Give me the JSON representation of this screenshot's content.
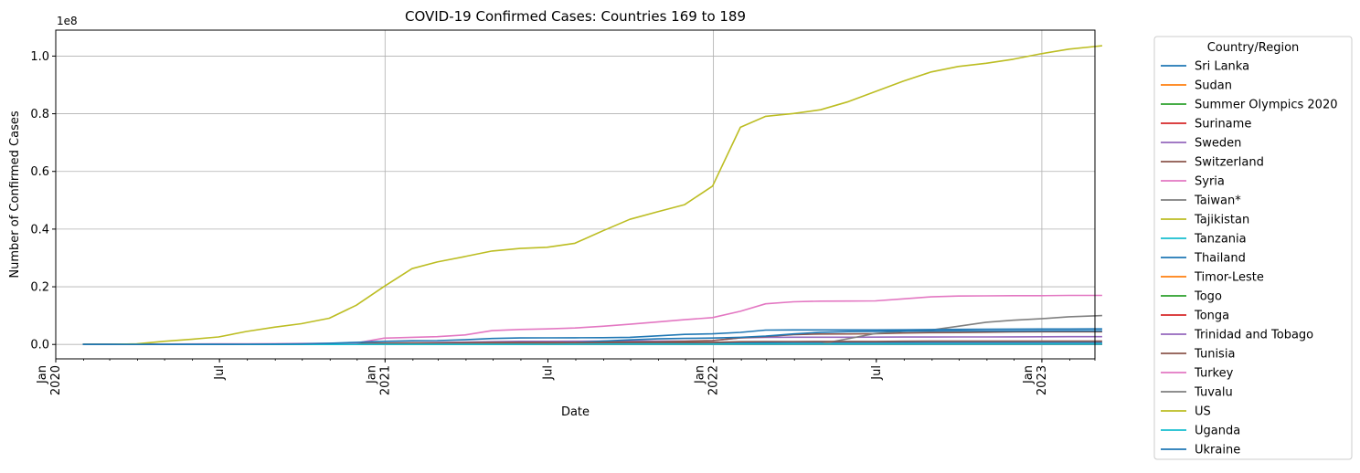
{
  "chart_data": {
    "type": "line",
    "title": "COVID-19 Confirmed Cases: Countries 169 to 189",
    "xlabel": "Date",
    "ylabel": "Number of Confirmed Cases",
    "y_offset_label": "1e8",
    "ylim": [
      -5000000,
      109000000
    ],
    "xlim": [
      "2020-01-01",
      "2023-03-01"
    ],
    "grid": true,
    "legend_title": "Country/Region",
    "legend_placement": "outside-right",
    "x_ticks": [
      {
        "date": "2020-01-01",
        "label": [
          "Jan",
          "2020"
        ]
      },
      {
        "date": "2020-07-01",
        "label": [
          "Jul"
        ]
      },
      {
        "date": "2021-01-01",
        "label": [
          "Jan",
          "2021"
        ]
      },
      {
        "date": "2021-07-01",
        "label": [
          "Jul"
        ]
      },
      {
        "date": "2022-01-01",
        "label": [
          "Jan",
          "2022"
        ]
      },
      {
        "date": "2022-07-01",
        "label": [
          "Jul"
        ]
      },
      {
        "date": "2023-01-01",
        "label": [
          "Jan",
          "2023"
        ]
      }
    ],
    "y_ticks": [
      {
        "value": 0,
        "label": "0.0"
      },
      {
        "value": 20000000,
        "label": "0.2"
      },
      {
        "value": 40000000,
        "label": "0.4"
      },
      {
        "value": 60000000,
        "label": "0.6"
      },
      {
        "value": 80000000,
        "label": "0.8"
      },
      {
        "value": 100000000,
        "label": "1.0"
      }
    ],
    "dates": [
      "2020-01-31",
      "2020-02-29",
      "2020-03-31",
      "2020-04-30",
      "2020-05-31",
      "2020-06-30",
      "2020-07-31",
      "2020-08-31",
      "2020-09-30",
      "2020-10-31",
      "2020-11-30",
      "2020-12-31",
      "2021-01-31",
      "2021-02-28",
      "2021-03-31",
      "2021-04-30",
      "2021-05-31",
      "2021-06-30",
      "2021-07-31",
      "2021-08-31",
      "2021-09-30",
      "2021-10-31",
      "2021-11-30",
      "2021-12-31",
      "2022-01-31",
      "2022-02-28",
      "2022-03-31",
      "2022-04-30",
      "2022-05-31",
      "2022-06-30",
      "2022-07-31",
      "2022-08-31",
      "2022-09-30",
      "2022-10-31",
      "2022-11-30",
      "2022-12-31",
      "2023-01-31",
      "2023-02-28",
      "2023-03-09"
    ],
    "series": [
      {
        "name": "Sri Lanka",
        "color": "#1f77b4",
        "values": [
          0,
          0,
          0,
          0,
          0,
          0,
          0,
          0,
          0,
          10000,
          20000,
          40000,
          60000,
          80000,
          90000,
          100000,
          170000,
          260000,
          310000,
          420000,
          520000,
          540000,
          570000,
          590000,
          620000,
          650000,
          660000,
          663000,
          663000,
          663000,
          664000,
          670000,
          671000,
          671000,
          671000,
          672000,
          672000,
          672000,
          672000
        ]
      },
      {
        "name": "Sudan",
        "color": "#ff7f0e",
        "values": [
          0,
          0,
          0,
          0,
          5000,
          9000,
          11000,
          13000,
          13000,
          14000,
          17000,
          23000,
          28000,
          31000,
          32000,
          34000,
          36000,
          37000,
          37000,
          38000,
          40000,
          42000,
          44000,
          49000,
          58000,
          61000,
          62000,
          62000,
          62000,
          62000,
          63000,
          63000,
          63000,
          63000,
          63000,
          63000,
          63000,
          63000,
          63000
        ]
      },
      {
        "name": "Summer Olympics 2020",
        "color": "#2ca02c",
        "values": [
          0,
          0,
          0,
          0,
          0,
          0,
          0,
          0,
          0,
          0,
          0,
          0,
          0,
          0,
          0,
          0,
          0,
          0,
          0,
          865,
          865,
          865,
          865,
          865,
          865,
          865,
          865,
          865,
          865,
          865,
          865,
          865,
          865,
          865,
          865,
          865,
          865,
          865,
          865
        ]
      },
      {
        "name": "Suriname",
        "color": "#d62728",
        "values": [
          0,
          0,
          0,
          0,
          0,
          1000,
          2000,
          4000,
          5000,
          5000,
          5000,
          6000,
          8000,
          9000,
          9000,
          10000,
          17000,
          24000,
          27000,
          30000,
          40000,
          49000,
          51000,
          52000,
          70000,
          78000,
          79000,
          79000,
          80000,
          80000,
          81000,
          81000,
          81000,
          82000,
          82000,
          82000,
          82000,
          82000,
          82000
        ]
      },
      {
        "name": "Sweden",
        "color": "#9467bd",
        "values": [
          0,
          10,
          5000,
          20000,
          37000,
          68000,
          81000,
          84000,
          94000,
          124000,
          243000,
          437000,
          580000,
          670000,
          780000,
          960000,
          1070000,
          1090000,
          1100000,
          1130000,
          1150000,
          1170000,
          1190000,
          1290000,
          2280000,
          2460000,
          2490000,
          2500000,
          2520000,
          2530000,
          2560000,
          2570000,
          2590000,
          2610000,
          2640000,
          2660000,
          2680000,
          2700000,
          2700000
        ]
      },
      {
        "name": "Switzerland",
        "color": "#8c564b",
        "values": [
          0,
          6,
          16000,
          30000,
          31000,
          32000,
          35000,
          42000,
          53000,
          135000,
          320000,
          450000,
          520000,
          550000,
          600000,
          660000,
          690000,
          700000,
          710000,
          780000,
          840000,
          880000,
          1070000,
          1320000,
          2330000,
          2740000,
          3410000,
          3610000,
          3640000,
          3720000,
          3970000,
          4080000,
          4130000,
          4260000,
          4340000,
          4400000,
          4400000,
          4400000,
          4400000
        ]
      },
      {
        "name": "Syria",
        "color": "#e377c2",
        "values": [
          0,
          0,
          10,
          40,
          120,
          300,
          700,
          2400,
          4100,
          5500,
          8000,
          11500,
          13500,
          15600,
          18700,
          22300,
          24300,
          25400,
          26000,
          27400,
          33800,
          41700,
          46700,
          49900,
          54300,
          55400,
          55800,
          55900,
          55900,
          56000,
          56100,
          56600,
          57100,
          57300,
          57400,
          57400,
          57400,
          57400,
          57400
        ]
      },
      {
        "name": "Taiwan*",
        "color": "#7f7f7f",
        "values": [
          10,
          40,
          320,
          430,
          440,
          450,
          470,
          490,
          510,
          550,
          670,
          800,
          900,
          960,
          1000,
          1100,
          11500,
          14900,
          15800,
          16000,
          16200,
          16400,
          16600,
          17000,
          18500,
          20000,
          25000,
          150000,
          2000000,
          3800000,
          4500000,
          5000000,
          6300000,
          7700000,
          8400000,
          8900000,
          9600000,
          9900000,
          10000000
        ]
      },
      {
        "name": "Tajikistan",
        "color": "#bcbd22",
        "values": [
          0,
          0,
          0,
          0,
          4000,
          6000,
          7200,
          8300,
          9500,
          10800,
          12200,
          13300,
          13300,
          13300,
          13300,
          13300,
          13300,
          13300,
          14500,
          16500,
          17000,
          17200,
          17300,
          17400,
          17500,
          17700,
          17700,
          17700,
          17800,
          17800,
          17800,
          17800,
          17800,
          17800,
          17800,
          17800,
          17800,
          17800,
          17800
        ]
      },
      {
        "name": "Tanzania",
        "color": "#17becf",
        "values": [
          0,
          0,
          19,
          480,
          510,
          510,
          510,
          510,
          510,
          510,
          510,
          510,
          510,
          510,
          510,
          510,
          510,
          510,
          1400,
          25000,
          26000,
          26000,
          26000,
          30000,
          33000,
          33000,
          33800,
          33900,
          34100,
          35400,
          37500,
          38800,
          39500,
          40000,
          40200,
          40300,
          42500,
          42900,
          43000
        ]
      },
      {
        "name": "Thailand",
        "color": "#1f77b4",
        "values": [
          20,
          40,
          1600,
          3000,
          3100,
          3200,
          3300,
          3400,
          3600,
          3800,
          3900,
          6900,
          19000,
          26000,
          29000,
          64000,
          160000,
          260000,
          600000,
          1190000,
          1580000,
          1920000,
          2090000,
          2230000,
          2460000,
          2890000,
          3640000,
          4220000,
          4440000,
          4520000,
          4590000,
          4640000,
          4680000,
          4690000,
          4700000,
          4720000,
          4730000,
          4730000,
          4730000
        ]
      },
      {
        "name": "Timor-Leste",
        "color": "#ff7f0e",
        "values": [
          0,
          0,
          1,
          24,
          24,
          24,
          25,
          27,
          28,
          30,
          30,
          44,
          80,
          120,
          770,
          2400,
          5500,
          8100,
          14200,
          18700,
          19500,
          19700,
          19800,
          19800,
          22600,
          22900,
          22900,
          22900,
          22900,
          23000,
          23100,
          23200,
          23300,
          23300,
          23400,
          23400,
          23400,
          23400,
          23400
        ]
      },
      {
        "name": "Togo",
        "color": "#2ca02c",
        "values": [
          0,
          1,
          34,
          116,
          441,
          661,
          950,
          1400,
          1800,
          2200,
          2800,
          3600,
          5000,
          6800,
          8500,
          12800,
          13400,
          13700,
          15700,
          23000,
          26000,
          26000,
          26500,
          29000,
          36500,
          36900,
          36900,
          37000,
          37100,
          38600,
          39000,
          39300,
          39300,
          39300,
          39300,
          39300,
          39400,
          39400,
          39400
        ]
      },
      {
        "name": "Tonga",
        "color": "#d62728",
        "values": [
          0,
          0,
          0,
          0,
          0,
          0,
          0,
          0,
          0,
          0,
          1,
          1,
          1,
          1,
          1,
          1,
          1,
          1,
          1,
          1,
          1,
          1,
          1,
          1,
          1,
          7,
          200,
          8700,
          11500,
          12000,
          15000,
          16000,
          16200,
          16300,
          16400,
          16600,
          16700,
          16800,
          16800
        ]
      },
      {
        "name": "Trinidad and Tobago",
        "color": "#9467bd",
        "values": [
          0,
          0,
          85,
          116,
          116,
          130,
          143,
          1100,
          4800,
          5800,
          6700,
          7000,
          7500,
          7800,
          8300,
          11500,
          24800,
          31000,
          37000,
          45000,
          53000,
          63000,
          76000,
          89000,
          113000,
          132000,
          143000,
          151000,
          160000,
          165000,
          175000,
          178000,
          180000,
          182000,
          185000,
          187000,
          189000,
          190000,
          190000
        ]
      },
      {
        "name": "Tunisia",
        "color": "#8c564b",
        "values": [
          0,
          0,
          400,
          1000,
          1100,
          1200,
          1500,
          3000,
          17500,
          56000,
          96000,
          137000,
          210000,
          230000,
          250000,
          310000,
          350000,
          380000,
          600000,
          680000,
          700000,
          710000,
          715000,
          720000,
          960000,
          1010000,
          1030000,
          1040000,
          1045000,
          1060000,
          1120000,
          1140000,
          1145000,
          1146000,
          1147000,
          1148000,
          1150000,
          1150000,
          1150000
        ]
      },
      {
        "name": "Turkey",
        "color": "#e377c2",
        "values": [
          0,
          0,
          13500,
          120000,
          164000,
          200000,
          230000,
          270000,
          320000,
          370000,
          470000,
          2200000,
          2460000,
          2700000,
          3300000,
          4800000,
          5200000,
          5400000,
          5700000,
          6300000,
          7000000,
          7800000,
          8600000,
          9300000,
          11500000,
          14100000,
          14800000,
          15000000,
          15050000,
          15100000,
          15800000,
          16500000,
          16800000,
          16850000,
          16900000,
          16900000,
          17000000,
          17000000,
          17000000
        ]
      },
      {
        "name": "Tuvalu",
        "color": "#7f7f7f",
        "values": [
          0,
          0,
          0,
          0,
          0,
          0,
          0,
          0,
          0,
          0,
          0,
          0,
          0,
          0,
          0,
          0,
          0,
          0,
          0,
          0,
          0,
          0,
          0,
          0,
          0,
          0,
          0,
          0,
          0,
          0,
          0,
          0,
          0,
          0,
          500,
          2700,
          2800,
          2800,
          2800
        ]
      },
      {
        "name": "US",
        "color": "#bcbd22",
        "values": [
          7,
          24,
          190000,
          1070000,
          1790000,
          2590000,
          4500000,
          6000000,
          7200000,
          9100000,
          13600000,
          20100000,
          26300000,
          28600000,
          30500000,
          32400000,
          33300000,
          33700000,
          35100000,
          39400000,
          43400000,
          46000000,
          48500000,
          54900000,
          75300000,
          79100000,
          80100000,
          81400000,
          84200000,
          87700000,
          91300000,
          94500000,
          96400000,
          97500000,
          98900000,
          100800000,
          102400000,
          103300000,
          103600000
        ]
      },
      {
        "name": "Uganda",
        "color": "#17becf",
        "values": [
          0,
          0,
          44,
          83,
          400,
          900,
          1100,
          3000,
          8000,
          12500,
          19000,
          35000,
          39000,
          40500,
          41000,
          42000,
          43500,
          80000,
          93000,
          118000,
          123000,
          126000,
          128000,
          137000,
          161000,
          163000,
          164000,
          164000,
          164000,
          166000,
          167000,
          168000,
          169000,
          169500,
          170000,
          170000,
          170000,
          170000,
          170000
        ]
      },
      {
        "name": "Ukraine",
        "color": "#1f77b4",
        "values": [
          0,
          0,
          550,
          10000,
          23000,
          43000,
          74000,
          131000,
          205000,
          400000,
          732000,
          1070000,
          1260000,
          1340000,
          1620000,
          2070000,
          2240000,
          2290000,
          2310000,
          2350000,
          2480000,
          2980000,
          3480000,
          3690000,
          4190000,
          4970000,
          5040000,
          5040000,
          5040000,
          5040000,
          5080000,
          5160000,
          5220000,
          5300000,
          5330000,
          5350000,
          5370000,
          5380000,
          5380000
        ]
      }
    ]
  }
}
